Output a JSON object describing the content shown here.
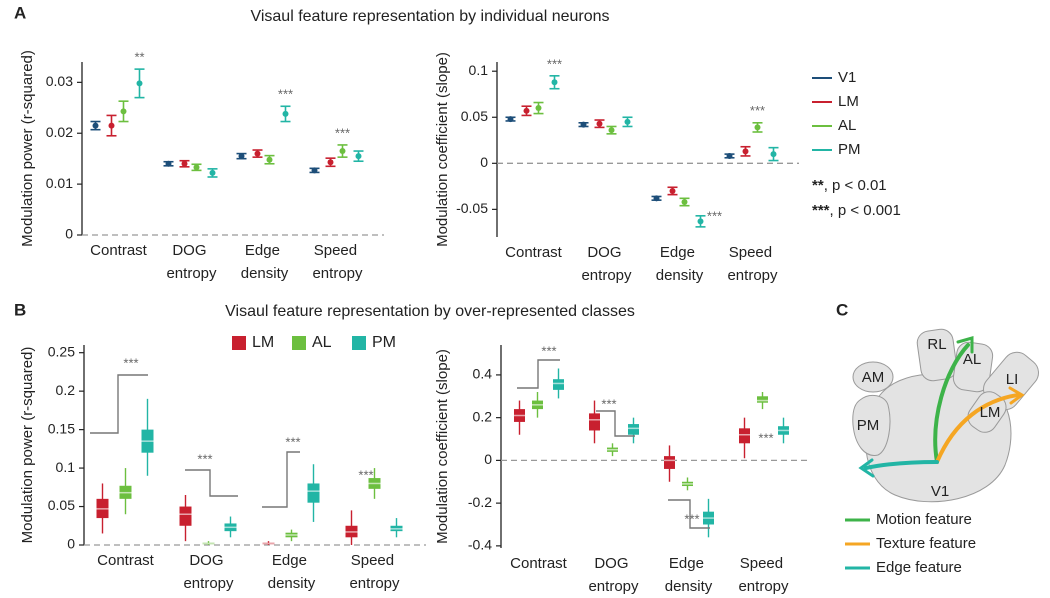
{
  "figure": {
    "panel_labels": [
      "A",
      "B",
      "C"
    ],
    "titles": [
      "Visaul feature representation by individual neurons",
      "Visaul feature representation by over-represented classes"
    ],
    "significance_legend": [
      "**, p < 0.01",
      "***, p < 0.001"
    ]
  },
  "chart_data": [
    {
      "type": "errorbar",
      "ylabel": "Modulation power (r-squared)",
      "categories": [
        "Contrast",
        "DOG entropy",
        "Edge density",
        "Speed entropy"
      ],
      "ylim": [
        0,
        0.034
      ],
      "yticks": [
        0,
        0.01,
        0.02,
        0.03
      ],
      "zero_line": true,
      "series": [
        {
          "color": "#1d4e79",
          "values": [
            0.0215,
            0.014,
            0.0155,
            0.0127
          ],
          "errors": [
            0.0008,
            0.0004,
            0.0005,
            0.0004
          ]
        },
        {
          "color": "#c8202f",
          "values": [
            0.0215,
            0.014,
            0.016,
            0.0143
          ],
          "errors": [
            0.002,
            0.0006,
            0.0007,
            0.0008
          ]
        },
        {
          "color": "#6cbf3f",
          "values": [
            0.0243,
            0.0133,
            0.0148,
            0.0165
          ],
          "errors": [
            0.002,
            0.0006,
            0.0008,
            0.0012
          ]
        },
        {
          "color": "#22b5a5",
          "values": [
            0.0298,
            0.0122,
            0.0238,
            0.0155
          ],
          "errors": [
            0.0028,
            0.0008,
            0.0015,
            0.001
          ]
        }
      ],
      "annotations": [
        "**",
        "***",
        "***"
      ]
    },
    {
      "type": "errorbar",
      "ylabel": "Modulation coefficient (slope)",
      "categories": [
        "Contrast",
        "DOG entropy",
        "Edge density",
        "Speed entropy"
      ],
      "ylim": [
        -0.08,
        0.11
      ],
      "yticks": [
        -0.05,
        0,
        0.05,
        0.1
      ],
      "zero_line": true,
      "legend": "right",
      "series": [
        {
          "name": "V1",
          "color": "#1d4e79",
          "values": [
            0.048,
            0.042,
            -0.038,
            0.008
          ],
          "errors": [
            0.002,
            0.002,
            0.002,
            0.002
          ]
        },
        {
          "name": "LM",
          "color": "#c8202f",
          "values": [
            0.057,
            0.043,
            -0.03,
            0.013
          ],
          "errors": [
            0.005,
            0.004,
            0.004,
            0.005
          ]
        },
        {
          "name": "AL",
          "color": "#6cbf3f",
          "values": [
            0.06,
            0.036,
            -0.042,
            0.039
          ],
          "errors": [
            0.006,
            0.004,
            0.004,
            0.005
          ]
        },
        {
          "name": "PM",
          "color": "#22b5a5",
          "values": [
            0.088,
            0.045,
            -0.063,
            0.01
          ],
          "errors": [
            0.007,
            0.005,
            0.006,
            0.007
          ]
        }
      ],
      "annotations": [
        "***",
        "***",
        "***"
      ]
    },
    {
      "type": "box",
      "ylabel": "Modulation power (r-squared)",
      "categories": [
        "Contrast",
        "DOG entropy",
        "Edge density",
        "Speed entropy"
      ],
      "ylim": [
        0,
        0.26
      ],
      "yticks": [
        0,
        0.05,
        0.1,
        0.15,
        0.2,
        0.25
      ],
      "zero_line": true,
      "legend": "upper right",
      "series": [
        {
          "name": "LM",
          "color": "#c8202f",
          "values": [
            0.047,
            0.04,
            0.002,
            0.017
          ],
          "q1": [
            0.035,
            0.025,
            0.001,
            0.01
          ],
          "q3": [
            0.06,
            0.05,
            0.003,
            0.025
          ],
          "whislo": [
            0.015,
            0.005,
            0,
            0
          ],
          "whishi": [
            0.08,
            0.065,
            0.005,
            0.045
          ]
        },
        {
          "name": "AL",
          "color": "#6cbf3f",
          "values": [
            0.068,
            0.002,
            0.013,
            0.08
          ],
          "q1": [
            0.06,
            0.001,
            0.01,
            0.073
          ],
          "q3": [
            0.077,
            0.003,
            0.016,
            0.087
          ],
          "whislo": [
            0.04,
            0,
            0.005,
            0.06
          ],
          "whishi": [
            0.1,
            0.005,
            0.02,
            0.1
          ]
        },
        {
          "name": "PM",
          "color": "#22b5a5",
          "values": [
            0.135,
            0.023,
            0.07,
            0.021
          ],
          "q1": [
            0.12,
            0.018,
            0.055,
            0.018
          ],
          "q3": [
            0.15,
            0.028,
            0.08,
            0.025
          ],
          "whislo": [
            0.09,
            0.01,
            0.03,
            0.01
          ],
          "whishi": [
            0.19,
            0.037,
            0.105,
            0.035
          ]
        }
      ],
      "annotations": [
        "***",
        "***",
        "***",
        "***"
      ]
    },
    {
      "type": "box",
      "ylabel": "Modulation coefficient (slope)",
      "categories": [
        "Contrast",
        "DOG entropy",
        "Edge density",
        "Speed entropy"
      ],
      "ylim": [
        -0.41,
        0.54
      ],
      "yticks": [
        -0.4,
        -0.2,
        0,
        0.2,
        0.4
      ],
      "zero_line": true,
      "series": [
        {
          "color": "#c8202f",
          "values": [
            0.21,
            0.19,
            0,
            0.12
          ],
          "q1": [
            0.18,
            0.14,
            -0.04,
            0.08
          ],
          "q3": [
            0.24,
            0.22,
            0.02,
            0.15
          ],
          "whislo": [
            0.12,
            0.08,
            -0.1,
            0.01
          ],
          "whishi": [
            0.28,
            0.28,
            0.07,
            0.2
          ]
        },
        {
          "color": "#6cbf3f",
          "values": [
            0.26,
            0.05,
            -0.11,
            0.28
          ],
          "q1": [
            0.24,
            0.04,
            -0.12,
            0.27
          ],
          "q3": [
            0.28,
            0.06,
            -0.1,
            0.3
          ],
          "whislo": [
            0.2,
            0.02,
            -0.14,
            0.24
          ],
          "whishi": [
            0.32,
            0.08,
            -0.08,
            0.32
          ]
        },
        {
          "color": "#22b5a5",
          "values": [
            0.36,
            0.15,
            -0.27,
            0.14
          ],
          "q1": [
            0.33,
            0.12,
            -0.3,
            0.12
          ],
          "q3": [
            0.38,
            0.17,
            -0.24,
            0.16
          ],
          "whislo": [
            0.29,
            0.08,
            -0.36,
            0.08
          ],
          "whishi": [
            0.43,
            0.2,
            -0.18,
            0.2
          ]
        }
      ],
      "annotations": [
        "***",
        "***",
        "***",
        "***"
      ]
    }
  ],
  "diagram": {
    "areas": [
      "RL",
      "AL",
      "LI",
      "AM",
      "PM",
      "LM",
      "V1"
    ],
    "legend": [
      "Motion feature",
      "Texture feature",
      "Edge feature"
    ]
  }
}
